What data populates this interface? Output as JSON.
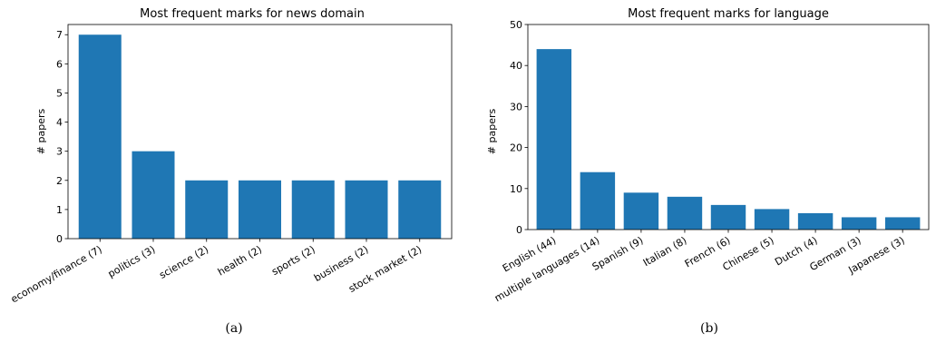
{
  "chart_data": [
    {
      "type": "bar",
      "title": "Most frequent marks for news domain",
      "xlabel": "",
      "ylabel": "# papers",
      "categories": [
        "economy/finance (7)",
        "politics (3)",
        "science (2)",
        "health (2)",
        "sports (2)",
        "business (2)",
        "stock market (2)"
      ],
      "values": [
        7,
        3,
        2,
        2,
        2,
        2,
        2
      ],
      "ylim": [
        0,
        7.35
      ],
      "yticks": [
        0,
        1,
        2,
        3,
        4,
        5,
        6,
        7
      ],
      "bar_color": "#1f77b4",
      "grid": false,
      "caption": "(a)"
    },
    {
      "type": "bar",
      "title": "Most frequent marks for language",
      "xlabel": "",
      "ylabel": "# papers",
      "categories": [
        "English (44)",
        "multiple languages (14)",
        "Spanish (9)",
        "Italian (8)",
        "French (6)",
        "Chinese (5)",
        "Dutch (4)",
        "German (3)",
        "Japanese (3)"
      ],
      "values": [
        44,
        14,
        9,
        8,
        6,
        5,
        4,
        3,
        3
      ],
      "ylim": [
        0,
        50
      ],
      "yticks": [
        0,
        10,
        20,
        30,
        40,
        50
      ],
      "bar_color": "#1f77b4",
      "grid": false,
      "caption": "(b)"
    }
  ]
}
